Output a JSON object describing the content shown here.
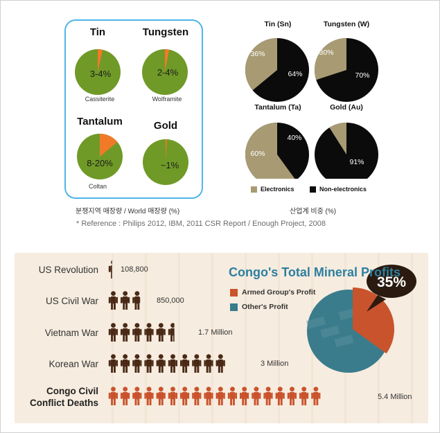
{
  "colors": {
    "green": "#6f9a27",
    "orange": "#f07a28",
    "tan": "#a89b73",
    "black": "#0b0b0b",
    "brown": "#4a2a16",
    "rust": "#c9532c",
    "teal": "#3a7c8c",
    "title_blue": "#2c7fa0"
  },
  "chart_data": [
    {
      "type": "pie",
      "title": "",
      "caption": "분쟁지역 매장량 / World 매장량 (%)",
      "pies": [
        {
          "title": "Tin",
          "label": "3-4%",
          "ore": "Cassiterite",
          "conflict_share": 3.5
        },
        {
          "title": "Tungsten",
          "label": "2-4%",
          "ore": "Wolframite",
          "conflict_share": 3
        },
        {
          "title": "Tantalum",
          "label": "8-20%",
          "ore": "Coltan",
          "conflict_share": 14
        },
        {
          "title": "Gold",
          "label": "~1%",
          "ore": "",
          "conflict_share": 1
        }
      ]
    },
    {
      "type": "pie",
      "title": "",
      "caption": "산업계 비중 (%)",
      "legend": [
        "Electronics",
        "Non-electronics"
      ],
      "legend_position": "bottom",
      "pies": [
        {
          "title": "Tin (Sn)",
          "electronics": 36,
          "non_electronics": 64
        },
        {
          "title": "Tungsten (W)",
          "electronics": 30,
          "non_electronics": 70
        },
        {
          "title": "Tantalum (Ta)",
          "electronics": 60,
          "non_electronics": 40
        },
        {
          "title": "Gold (Au)",
          "electronics": 9,
          "non_electronics": 91
        }
      ]
    },
    {
      "type": "bar",
      "title": "",
      "unit_icon": "person-icon",
      "categories": [
        "US Revolution",
        "US Civil War",
        "Vietnam War",
        "Korean War",
        "Congo Civil Conflict Deaths"
      ],
      "values": [
        108800,
        850000,
        1700000,
        3000000,
        5400000
      ],
      "value_labels": [
        "108,800",
        "850,000",
        "1.7 Million",
        "3 Million",
        "5.4 Million"
      ]
    },
    {
      "type": "pie",
      "title": "Congo's Total Mineral Profits",
      "legend": [
        "Armed Group's Profit",
        "Other's Profit"
      ],
      "slices": [
        {
          "label": "Armed Group's Profit",
          "value": 35
        },
        {
          "label": "Other's Profit",
          "value": 65
        }
      ],
      "callout": "35%"
    }
  ],
  "reference": "* Reference : Philips 2012, IBM, 2011 CSR Report / Enough Project, 2008"
}
